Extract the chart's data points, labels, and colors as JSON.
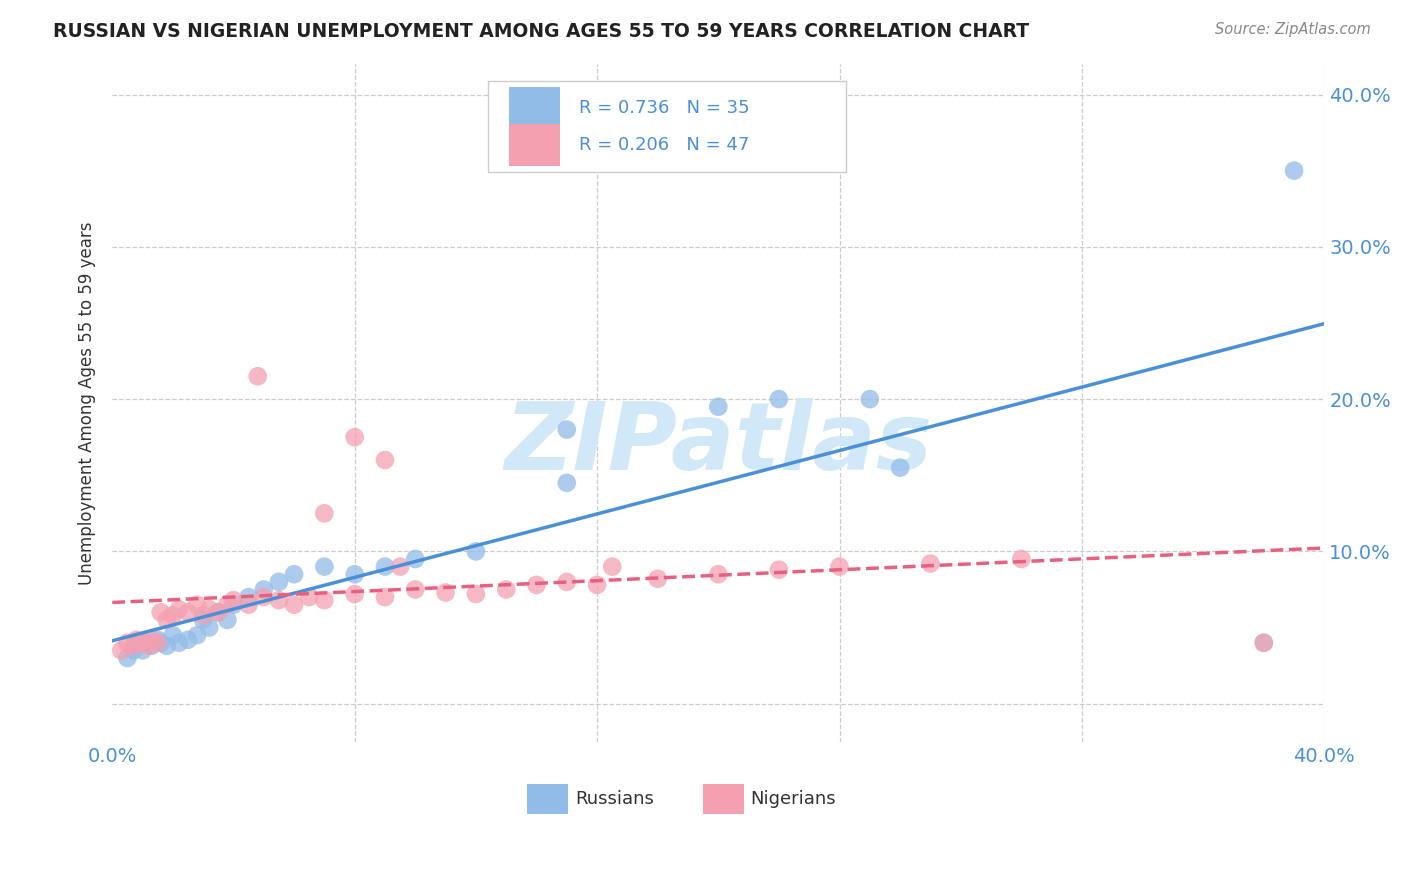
{
  "title": "RUSSIAN VS NIGERIAN UNEMPLOYMENT AMONG AGES 55 TO 59 YEARS CORRELATION CHART",
  "source": "Source: ZipAtlas.com",
  "ylabel": "Unemployment Among Ages 55 to 59 years",
  "xlim": [
    0.0,
    0.4
  ],
  "ylim": [
    -0.025,
    0.42
  ],
  "xticks": [
    0.0,
    0.08,
    0.16,
    0.24,
    0.32,
    0.4
  ],
  "xticklabels": [
    "0.0%",
    "",
    "",
    "",
    "",
    "40.0%"
  ],
  "yticks_right": [
    0.0,
    0.1,
    0.2,
    0.3,
    0.4
  ],
  "yticklabels_right": [
    "",
    "10.0%",
    "20.0%",
    "30.0%",
    "40.0%"
  ],
  "russian_R": 0.736,
  "russian_N": 35,
  "nigerian_R": 0.206,
  "nigerian_N": 47,
  "russian_color": "#92bce8",
  "nigerian_color": "#f4a0b0",
  "russian_line_color": "#4a90d9",
  "nigerian_line_color": "#e86080",
  "russian_x": [
    0.005,
    0.007,
    0.008,
    0.01,
    0.012,
    0.013,
    0.015,
    0.016,
    0.018,
    0.02,
    0.022,
    0.025,
    0.028,
    0.03,
    0.032,
    0.035,
    0.038,
    0.04,
    0.045,
    0.05,
    0.055,
    0.06,
    0.07,
    0.08,
    0.09,
    0.1,
    0.12,
    0.15,
    0.2,
    0.25,
    0.15,
    0.22,
    0.26,
    0.38,
    0.39
  ],
  "russian_y": [
    0.03,
    0.035,
    0.04,
    0.035,
    0.04,
    0.038,
    0.042,
    0.04,
    0.038,
    0.045,
    0.04,
    0.042,
    0.045,
    0.055,
    0.05,
    0.06,
    0.055,
    0.065,
    0.07,
    0.075,
    0.08,
    0.085,
    0.09,
    0.085,
    0.09,
    0.095,
    0.1,
    0.145,
    0.195,
    0.2,
    0.18,
    0.2,
    0.155,
    0.04,
    0.35
  ],
  "nigerian_x": [
    0.003,
    0.005,
    0.007,
    0.008,
    0.01,
    0.012,
    0.013,
    0.015,
    0.016,
    0.018,
    0.02,
    0.022,
    0.025,
    0.028,
    0.03,
    0.032,
    0.035,
    0.038,
    0.04,
    0.045,
    0.05,
    0.055,
    0.06,
    0.065,
    0.07,
    0.08,
    0.09,
    0.1,
    0.11,
    0.12,
    0.13,
    0.14,
    0.15,
    0.16,
    0.18,
    0.2,
    0.22,
    0.24,
    0.27,
    0.3,
    0.048,
    0.07,
    0.08,
    0.09,
    0.095,
    0.165,
    0.38
  ],
  "nigerian_y": [
    0.035,
    0.04,
    0.038,
    0.042,
    0.04,
    0.038,
    0.042,
    0.04,
    0.06,
    0.055,
    0.058,
    0.062,
    0.06,
    0.065,
    0.058,
    0.062,
    0.06,
    0.065,
    0.068,
    0.065,
    0.07,
    0.068,
    0.065,
    0.07,
    0.068,
    0.072,
    0.07,
    0.075,
    0.073,
    0.072,
    0.075,
    0.078,
    0.08,
    0.078,
    0.082,
    0.085,
    0.088,
    0.09,
    0.092,
    0.095,
    0.215,
    0.125,
    0.175,
    0.16,
    0.09,
    0.09,
    0.04
  ],
  "watermark_text": "ZIPatlas",
  "watermark_color": "#d0e8f8",
  "background_color": "#ffffff",
  "grid_color": "#cccccc",
  "title_color": "#222222",
  "axis_tick_color": "#4a90d9",
  "legend_label_color": "#4a90d9"
}
